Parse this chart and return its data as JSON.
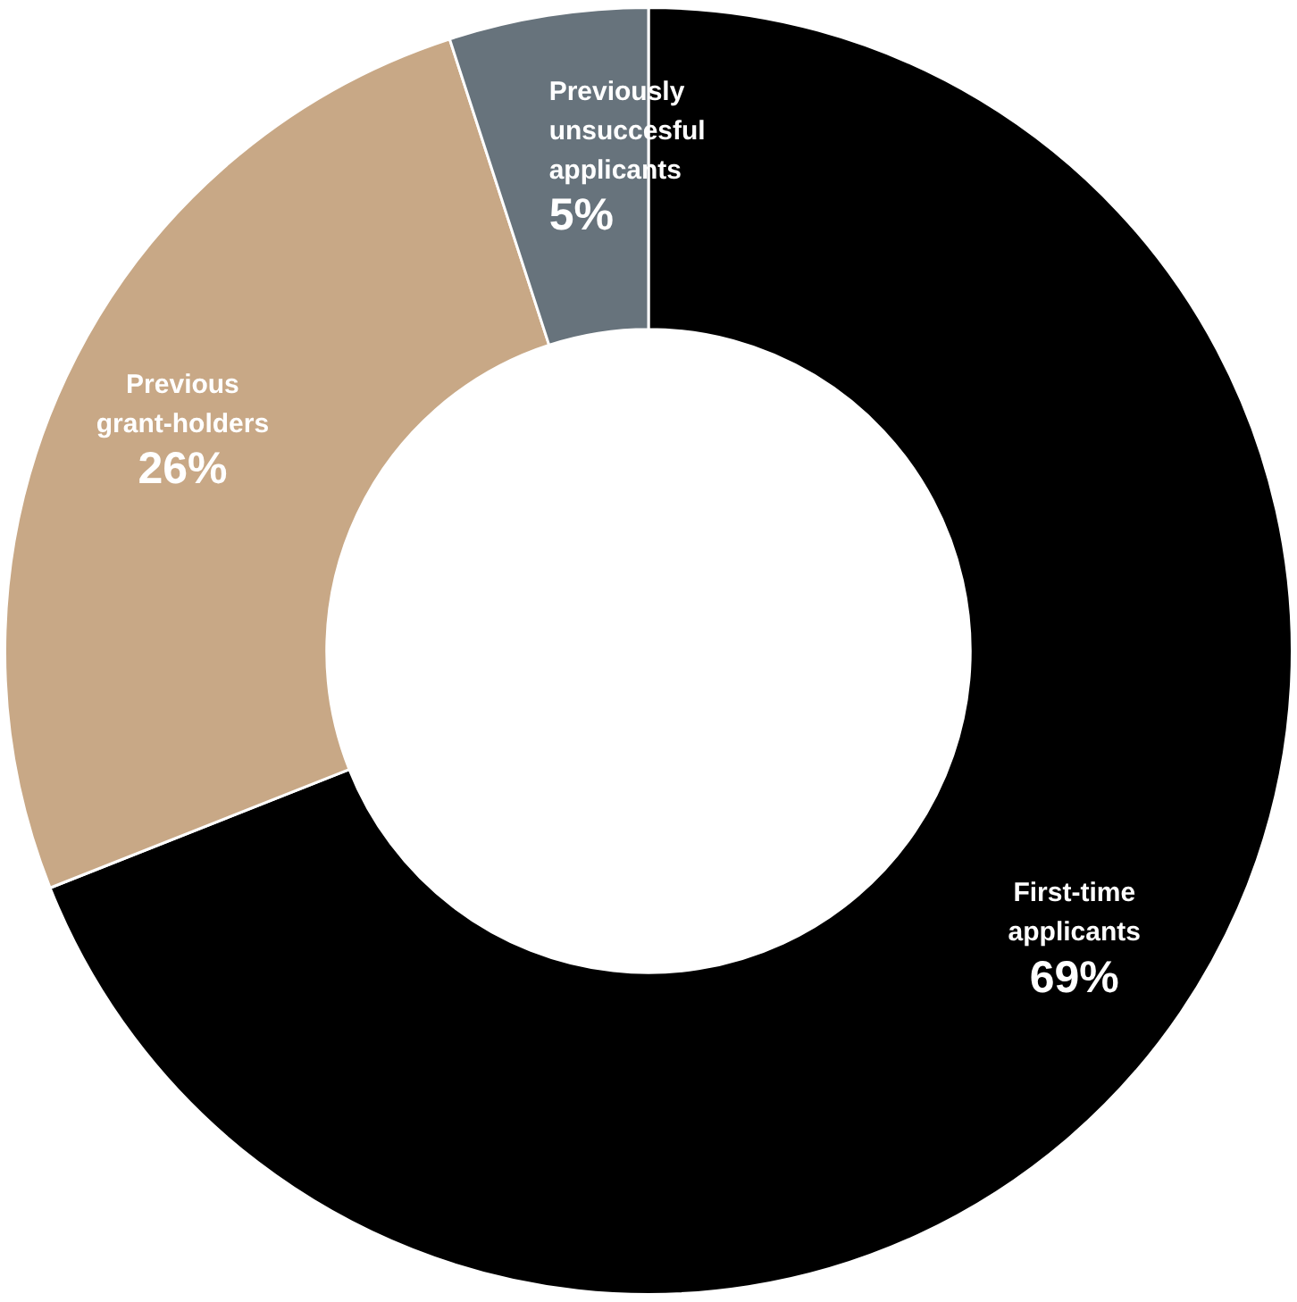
{
  "chart_data": {
    "type": "donut",
    "categories": [
      "First-time applicants",
      "Previous grant-holders",
      "Previously unsuccesful applicants"
    ],
    "values": [
      69,
      26,
      5
    ],
    "colors": [
      "#000000",
      "#c8a886",
      "#67737c"
    ],
    "value_labels": [
      "69%",
      "26%",
      "5%"
    ],
    "legend": false
  }
}
